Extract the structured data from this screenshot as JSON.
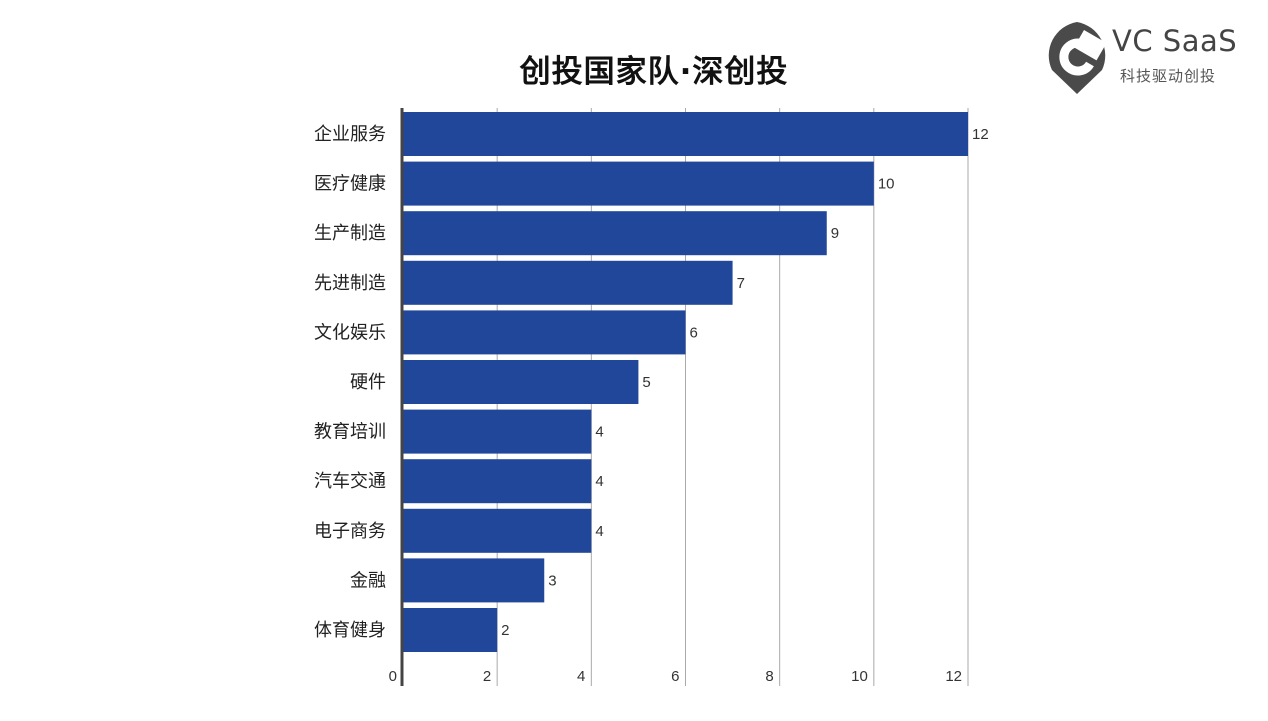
{
  "brand": {
    "name": "VC SaaS",
    "tagline": "科技驱动创投"
  },
  "chart_data": {
    "type": "bar",
    "orientation": "horizontal",
    "title": "创投国家队·深创投",
    "categories": [
      "企业服务",
      "医疗健康",
      "生产制造",
      "先进制造",
      "文化娱乐",
      "硬件",
      "教育培训",
      "汽车交通",
      "电子商务",
      "金融",
      "体育健身"
    ],
    "values": [
      12,
      10,
      9,
      7,
      6,
      5,
      4,
      4,
      4,
      3,
      2
    ],
    "xticks": [
      0,
      2,
      4,
      6,
      8,
      10,
      12
    ],
    "xlim": [
      0,
      12
    ],
    "xlabel": "",
    "ylabel": "",
    "grid": true,
    "data_labels": true,
    "bar_color": "#21479a"
  }
}
